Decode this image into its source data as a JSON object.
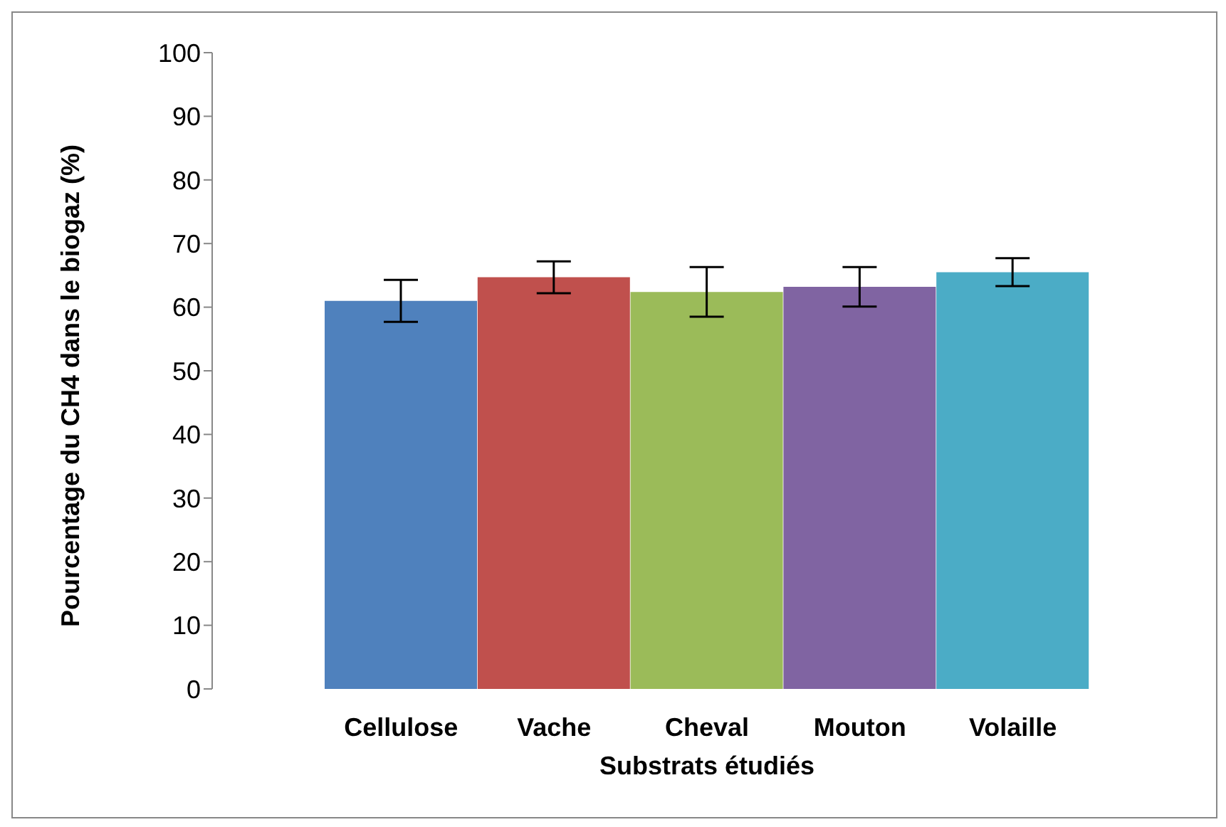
{
  "chart_data": {
    "type": "bar",
    "xlabel": "Substrats étudiés",
    "ylabel": "Pourcentage du CH4 dans le biogaz (%)",
    "categories": [
      "Cellulose",
      "Vache",
      "Cheval",
      "Mouton",
      "Volaille"
    ],
    "values": [
      61.0,
      64.7,
      62.4,
      63.2,
      65.5
    ],
    "colors": [
      "#4f81bd",
      "#c0504d",
      "#9bbb59",
      "#8064a2",
      "#4bacc6"
    ],
    "errors": [
      3.3,
      2.5,
      3.9,
      3.1,
      2.2
    ],
    "ylim": [
      0,
      100
    ],
    "yticks": [
      0,
      10,
      20,
      30,
      40,
      50,
      60,
      70,
      80,
      90,
      100
    ],
    "grid": false
  }
}
